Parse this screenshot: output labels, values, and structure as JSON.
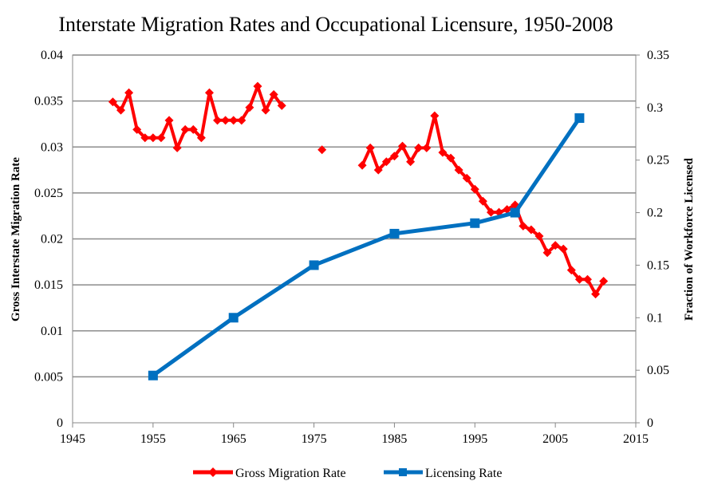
{
  "chart_data": {
    "type": "line",
    "title": "Interstate Migration Rates and Occupational Licensure, 1950-2008",
    "xlabel": "",
    "ylabel_left": "Gross Interstate Migration Rate",
    "ylabel_right": "Fraction of Workforce Licensed",
    "xlim": [
      1945,
      2015
    ],
    "ylim_left": [
      0,
      0.04
    ],
    "ylim_right": [
      0,
      0.35
    ],
    "x_ticks": [
      "1945",
      "1955",
      "1965",
      "1975",
      "1985",
      "1995",
      "2005",
      "2015"
    ],
    "y_left_ticks": [
      "0",
      "0.005",
      "0.01",
      "0.015",
      "0.02",
      "0.025",
      "0.03",
      "0.035",
      "0.04"
    ],
    "y_right_ticks": [
      "0",
      "0.05",
      "0.1",
      "0.15",
      "0.2",
      "0.25",
      "0.3",
      "0.35"
    ],
    "grid": "horizontal",
    "legend_position": "bottom",
    "series": [
      {
        "name": "Gross Migration Rate",
        "axis": "left",
        "color": "#ff0000",
        "marker": "diamond",
        "segments": [
          [
            [
              1950,
              0.0349
            ],
            [
              1951,
              0.034
            ],
            [
              1952,
              0.0359
            ],
            [
              1953,
              0.0319
            ],
            [
              1954,
              0.031
            ],
            [
              1955,
              0.031
            ],
            [
              1956,
              0.031
            ],
            [
              1957,
              0.0329
            ],
            [
              1958,
              0.0299
            ],
            [
              1959,
              0.0319
            ],
            [
              1960,
              0.0319
            ],
            [
              1961,
              0.031
            ],
            [
              1962,
              0.0359
            ],
            [
              1963,
              0.0329
            ],
            [
              1964,
              0.0329
            ],
            [
              1965,
              0.0329
            ],
            [
              1966,
              0.0329
            ],
            [
              1967,
              0.0343
            ],
            [
              1968,
              0.0366
            ],
            [
              1969,
              0.034
            ],
            [
              1970,
              0.0357
            ],
            [
              1971,
              0.0345
            ]
          ],
          [
            [
              1976,
              0.0297
            ]
          ],
          [
            [
              1981,
              0.028
            ],
            [
              1982,
              0.0299
            ],
            [
              1983,
              0.0275
            ],
            [
              1984,
              0.0284
            ],
            [
              1985,
              0.029
            ],
            [
              1986,
              0.0301
            ],
            [
              1987,
              0.0284
            ],
            [
              1988,
              0.0299
            ],
            [
              1989,
              0.0299
            ],
            [
              1990,
              0.0334
            ],
            [
              1991,
              0.0294
            ],
            [
              1992,
              0.0288
            ],
            [
              1993,
              0.0275
            ],
            [
              1994,
              0.0266
            ],
            [
              1995,
              0.0254
            ],
            [
              1996,
              0.0241
            ],
            [
              1997,
              0.0229
            ],
            [
              1998,
              0.0229
            ],
            [
              1999,
              0.0232
            ],
            [
              2000,
              0.0237
            ],
            [
              2001,
              0.0214
            ],
            [
              2002,
              0.021
            ],
            [
              2003,
              0.0203
            ],
            [
              2004,
              0.0185
            ],
            [
              2005,
              0.0193
            ],
            [
              2006,
              0.0189
            ],
            [
              2007,
              0.0166
            ],
            [
              2008,
              0.0156
            ],
            [
              2009,
              0.0156
            ],
            [
              2010,
              0.014
            ],
            [
              2011,
              0.0154
            ]
          ]
        ]
      },
      {
        "name": "Licensing Rate",
        "axis": "right",
        "color": "#0070c0",
        "marker": "square",
        "segments": [
          [
            [
              1955,
              0.045
            ],
            [
              1965,
              0.1
            ],
            [
              1975,
              0.15
            ],
            [
              1985,
              0.18
            ],
            [
              1995,
              0.19
            ],
            [
              2000,
              0.2
            ],
            [
              2008,
              0.29
            ]
          ]
        ]
      }
    ]
  }
}
